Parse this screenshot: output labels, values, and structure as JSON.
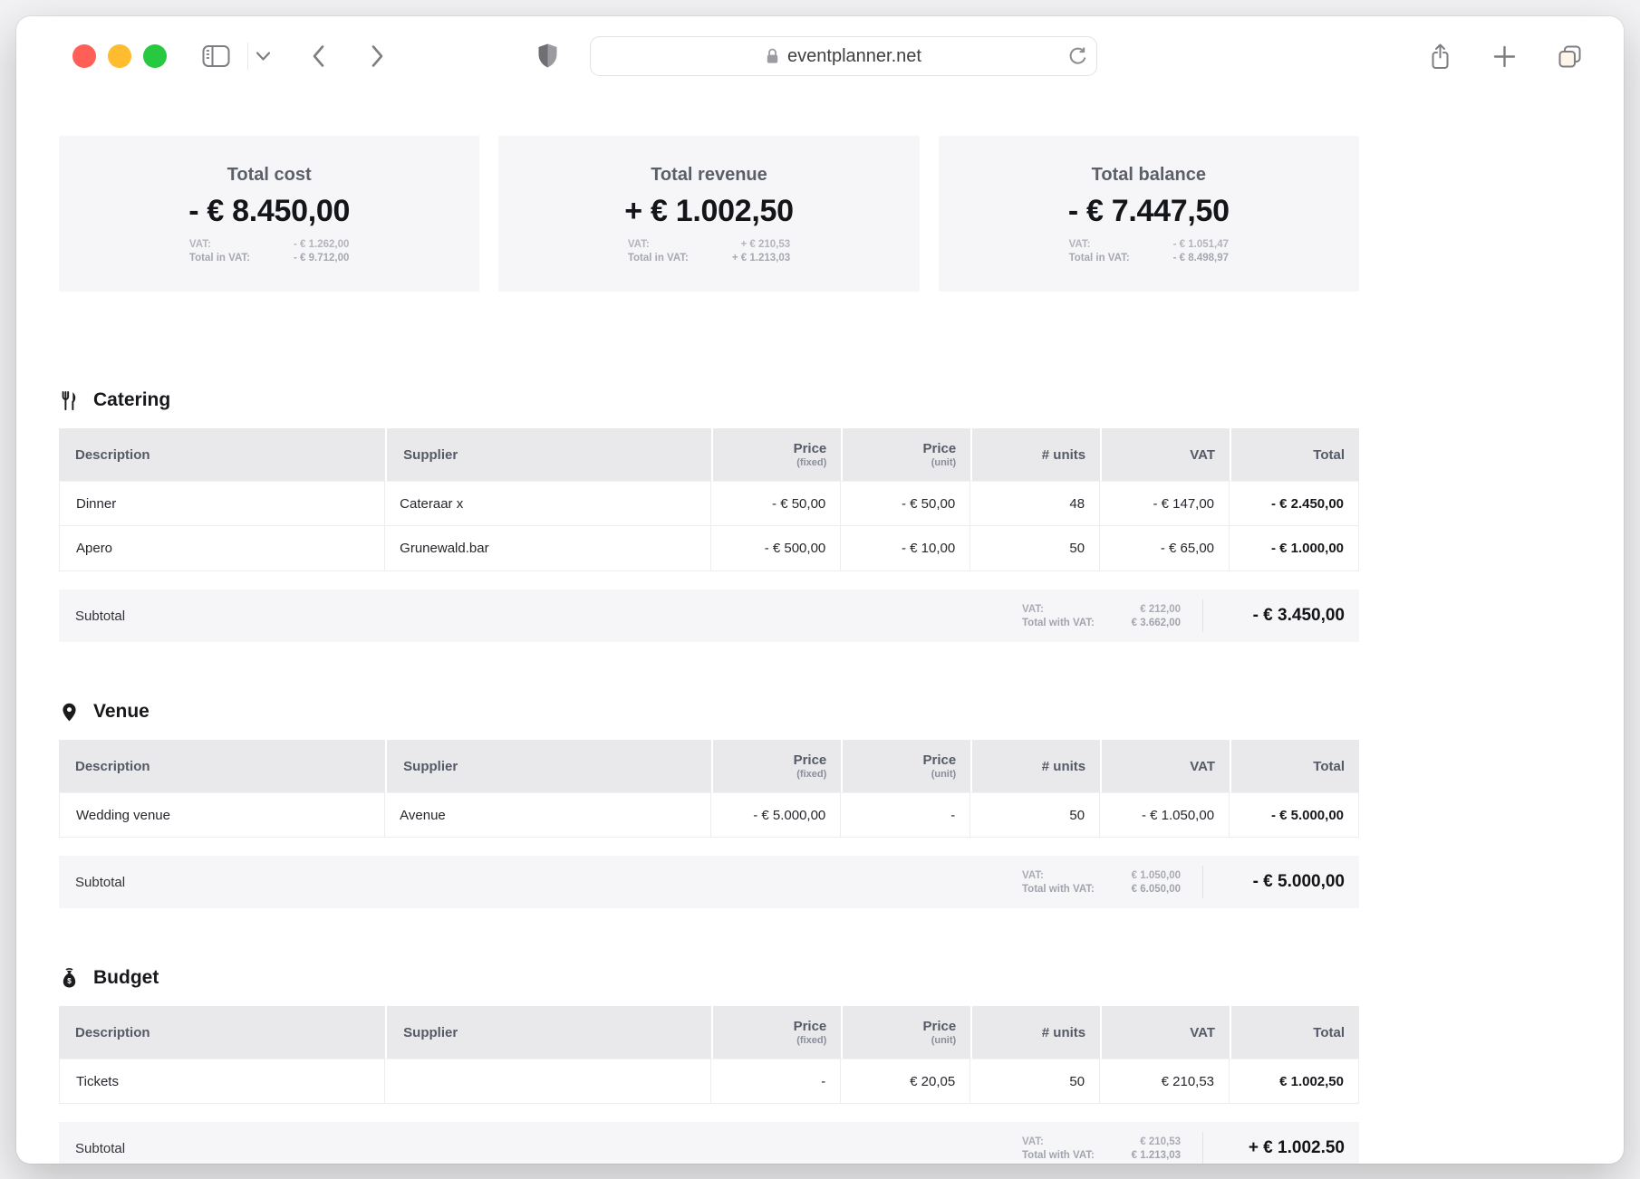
{
  "browser": {
    "url": "eventplanner.net",
    "traffic_lights": {
      "close": "#ff5f57",
      "minimize": "#febc2e",
      "zoom": "#28c840"
    },
    "toolbar_icons": [
      "sidebar-toggle-icon",
      "chevron-down-icon",
      "back-icon",
      "forward-icon",
      "shield-icon",
      "lock-icon",
      "reload-icon",
      "share-icon",
      "plus-icon",
      "tab-overview-icon"
    ]
  },
  "summary_cards": [
    {
      "title": "Total cost",
      "amount": "- € 8.450,00",
      "vat_label": "VAT:",
      "vat": "- € 1.262,00",
      "total_in_vat_label": "Total in VAT:",
      "total_in_vat": "- € 9.712,00"
    },
    {
      "title": "Total revenue",
      "amount": "+ € 1.002,50",
      "vat_label": "VAT:",
      "vat": "+ € 210,53",
      "total_in_vat_label": "Total in VAT:",
      "total_in_vat": "+ € 1.213,03"
    },
    {
      "title": "Total balance",
      "amount": "- € 7.447,50",
      "vat_label": "VAT:",
      "vat": "- € 1.051,47",
      "total_in_vat_label": "Total in VAT:",
      "total_in_vat": "- € 8.498,97"
    }
  ],
  "table_headers": {
    "description": "Description",
    "supplier": "Supplier",
    "price_fixed": "Price",
    "price_fixed_sub": "(fixed)",
    "price_unit": "Price",
    "price_unit_sub": "(unit)",
    "units": "# units",
    "vat": "VAT",
    "total": "Total"
  },
  "sections": [
    {
      "title": "Catering",
      "icon": "utensils-icon",
      "rows": [
        {
          "description": "Dinner",
          "supplier": "Cateraar x",
          "price_fixed": "- € 50,00",
          "price_unit": "- € 50,00",
          "units": "48",
          "vat": "- € 147,00",
          "total": "- € 2.450,00"
        },
        {
          "description": "Apero",
          "supplier": "Grunewald.bar",
          "price_fixed": "- € 500,00",
          "price_unit": "- € 10,00",
          "units": "50",
          "vat": "- € 65,00",
          "total": "- € 1.000,00"
        }
      ],
      "subtotal": {
        "label": "Subtotal",
        "vat_label": "VAT:",
        "vat": "€ 212,00",
        "with_vat_label": "Total with VAT:",
        "with_vat": "€ 3.662,00",
        "total": "- € 3.450,00"
      }
    },
    {
      "title": "Venue",
      "icon": "location-pin-icon",
      "rows": [
        {
          "description": "Wedding venue",
          "supplier": "Avenue",
          "price_fixed": "- € 5.000,00",
          "price_unit": "-",
          "units": "50",
          "vat": "- € 1.050,00",
          "total": "- € 5.000,00"
        }
      ],
      "subtotal": {
        "label": "Subtotal",
        "vat_label": "VAT:",
        "vat": "€ 1.050,00",
        "with_vat_label": "Total with VAT:",
        "with_vat": "€ 6.050,00",
        "total": "- € 5.000,00"
      }
    },
    {
      "title": "Budget",
      "icon": "money-bag-icon",
      "rows": [
        {
          "description": "Tickets",
          "supplier": "",
          "price_fixed": "-",
          "price_unit": "€ 20,05",
          "units": "50",
          "vat": "€ 210,53",
          "total": "€ 1.002,50"
        }
      ],
      "subtotal": {
        "label": "Subtotal",
        "vat_label": "VAT:",
        "vat": "€ 210,53",
        "with_vat_label": "Total with VAT:",
        "with_vat": "€ 1.213,03",
        "total": "+ € 1.002.50"
      }
    }
  ]
}
